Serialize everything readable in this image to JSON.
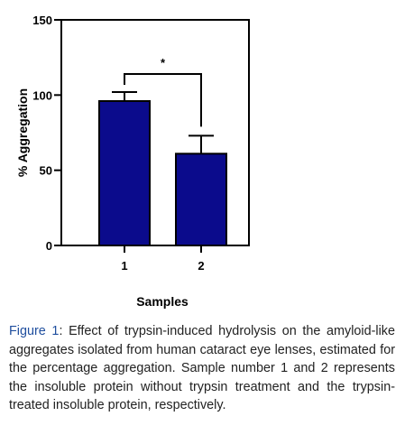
{
  "chart_data": {
    "type": "bar",
    "categories": [
      "1",
      "2"
    ],
    "values": [
      96,
      61
    ],
    "errors_upper": [
      6,
      12
    ],
    "xlabel": "Samples",
    "ylabel": "% Aggregation",
    "ylim": [
      0,
      150
    ],
    "yticks": [
      "0",
      "50",
      "100",
      "150"
    ],
    "bar_color": "#0b0b8c",
    "grid": false,
    "significance": {
      "between": [
        "1",
        "2"
      ],
      "label": "*"
    }
  },
  "caption": {
    "label": "Figure 1",
    "text": ": Effect of trypsin-induced hydrolysis on the amyloid-like aggregates isolated from human cataract eye lenses, estimated for the percentage aggregation. Sample number 1 and 2 represents the insoluble protein without trypsin treatment and the trypsin-treated insoluble protein, respectively."
  }
}
